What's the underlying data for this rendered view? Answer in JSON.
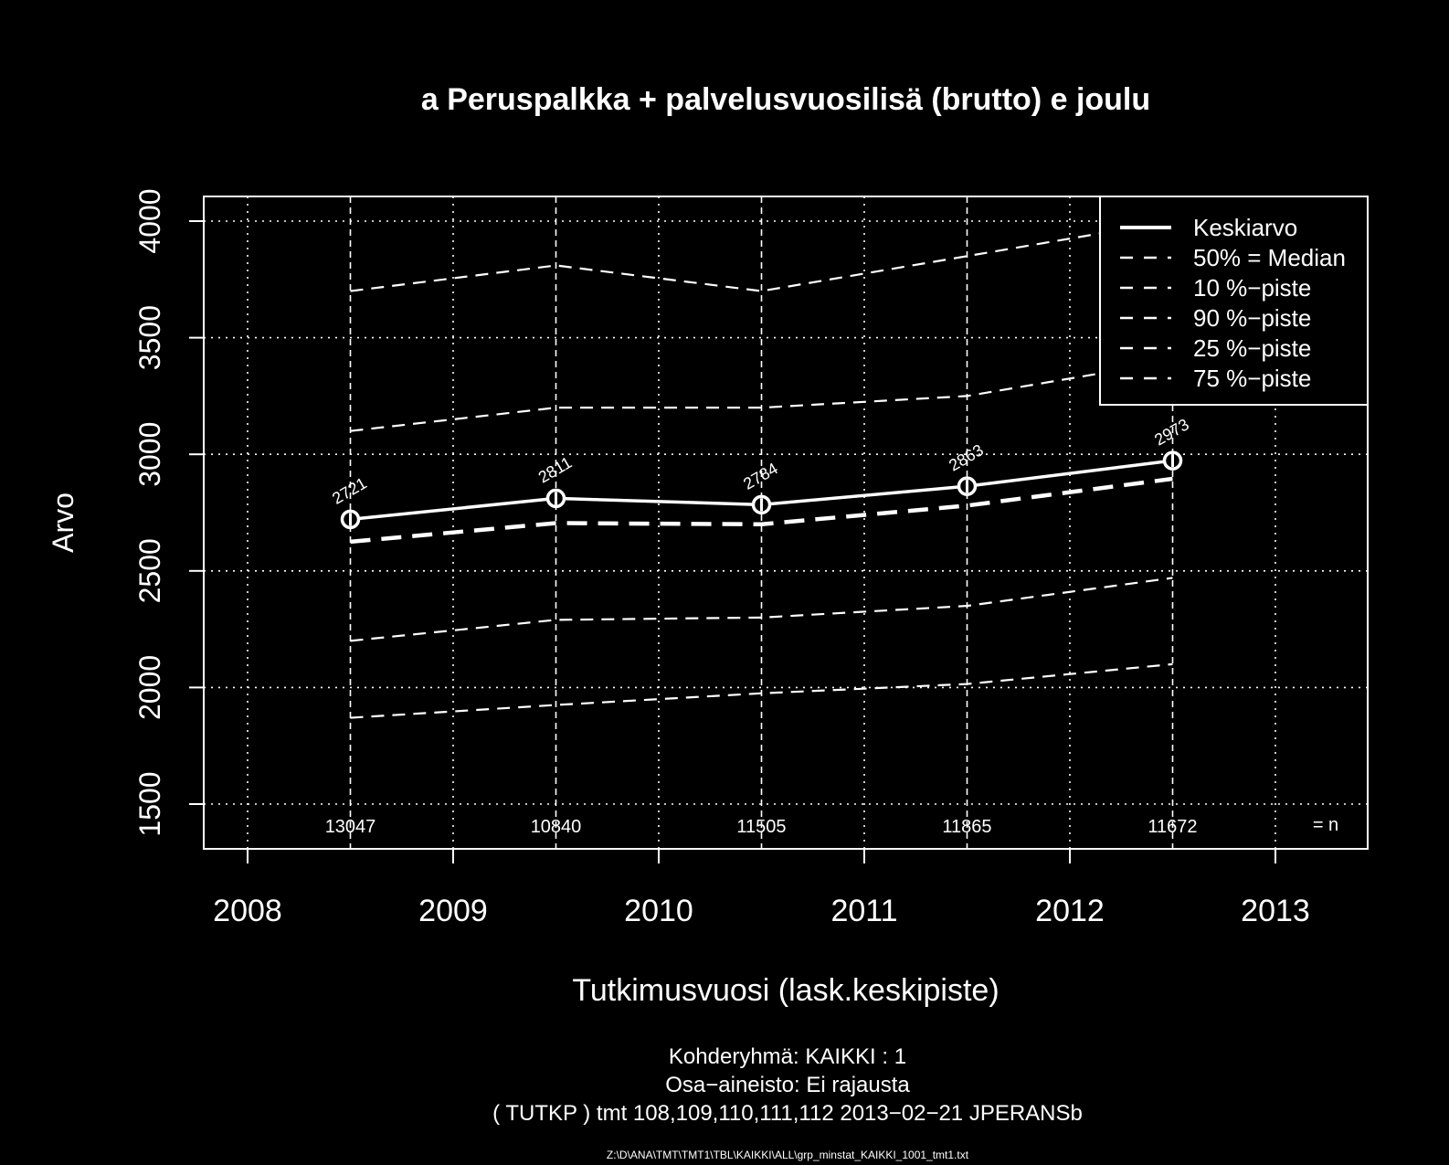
{
  "chart_data": {
    "type": "line",
    "title": "a Peruspalkka + palvelusvuosilisä (brutto) e joulu",
    "xlabel": "Tutkimusvuosi (lask.keskipiste)",
    "ylabel": "Arvo",
    "xlim": [
      2008,
      2013
    ],
    "ylim": [
      1500,
      4000
    ],
    "x_ticks": [
      "2008",
      "2009",
      "2010",
      "2011",
      "2012",
      "2013"
    ],
    "y_ticks": [
      "1500",
      "2000",
      "2500",
      "3000",
      "3500",
      "4000"
    ],
    "x": [
      2008.5,
      2009.5,
      2010.5,
      2011.5,
      2012.5
    ],
    "grid": true,
    "legend_position": "top-right",
    "series": [
      {
        "name": "Keskiarvo",
        "style": "solid",
        "width": 3.5,
        "values": [
          2721,
          2811,
          2784,
          2863,
          2973
        ],
        "point_labels": [
          "2721",
          "2811",
          "2784",
          "2863",
          "2973"
        ],
        "markers": true
      },
      {
        "name": "50% = Median",
        "style": "dashed",
        "width": 4.5,
        "values": [
          2625,
          2705,
          2700,
          2780,
          2895
        ]
      },
      {
        "name": "10 %−piste",
        "style": "dashed",
        "width": 2.2,
        "values": [
          1870,
          1925,
          1975,
          2015,
          2100
        ]
      },
      {
        "name": "90 %−piste",
        "style": "dashed",
        "width": 2.2,
        "values": [
          3700,
          3810,
          3700,
          3850,
          4000
        ]
      },
      {
        "name": "25 %−piste",
        "style": "dashed",
        "width": 2.2,
        "values": [
          2200,
          2290,
          2300,
          2350,
          2470
        ]
      },
      {
        "name": "75 %−piste",
        "style": "dashed",
        "width": 2.2,
        "values": [
          3100,
          3200,
          3200,
          3250,
          3400
        ]
      }
    ],
    "n_values": [
      "13047",
      "10840",
      "11505",
      "11865",
      "11672"
    ],
    "n_label": "= n",
    "footer_lines": [
      "Kohderyhmä:  KAIKKI : 1",
      "Osa−aineisto:  Ei rajausta",
      "( TUTKP )  tmt 108,109,110,111,112 2013−02−21 JPERANSb"
    ],
    "file_path": "Z:\\D\\ANA\\TMT\\TMT1\\TBL\\KAIKKI\\ALL\\grp_minstat_KAIKKI_1001_tmt1.txt"
  }
}
